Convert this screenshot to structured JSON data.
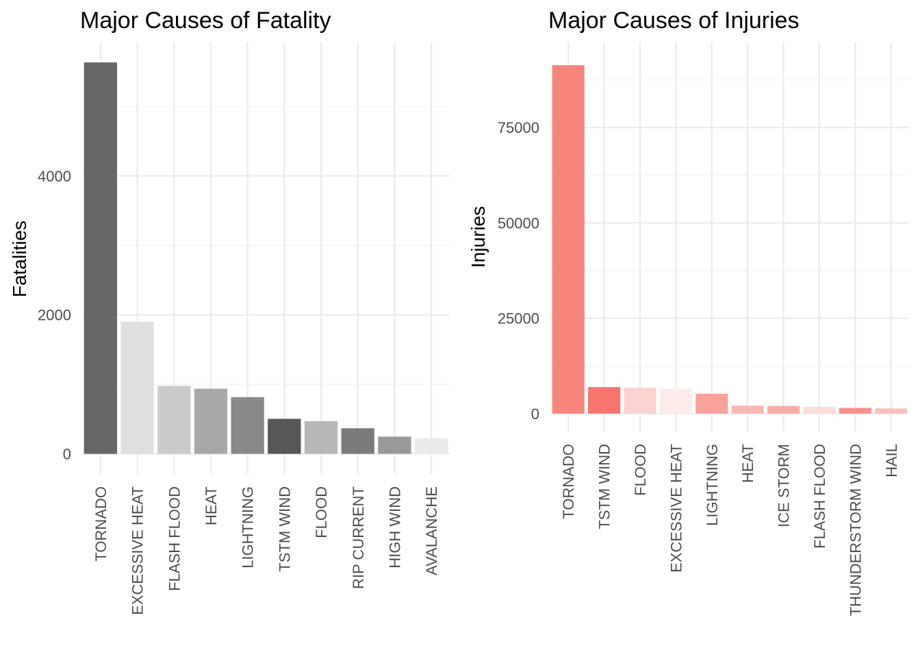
{
  "chart_data": [
    {
      "type": "bar",
      "title": "Major Causes of Fatality",
      "xlabel": "",
      "ylabel": "Fatalities",
      "categories": [
        "TORNADO",
        "EXCESSIVE HEAT",
        "FLASH FLOOD",
        "HEAT",
        "LIGHTNING",
        "TSTM WIND",
        "FLOOD",
        "RIP CURRENT",
        "HIGH WIND",
        "AVALANCHE"
      ],
      "values": [
        5633,
        1903,
        978,
        937,
        816,
        504,
        470,
        368,
        248,
        224
      ],
      "bar_colors": [
        "#676767",
        "#dedede",
        "#cbcbcb",
        "#a8a8a8",
        "#898989",
        "#585858",
        "#b8b8b8",
        "#7a7a7a",
        "#999999",
        "#eaeaea"
      ],
      "yticks": [
        0,
        2000,
        4000
      ],
      "ylim": [
        -290,
        5920
      ],
      "grid": true
    },
    {
      "type": "bar",
      "title": "Major Causes of Injuries",
      "xlabel": "",
      "ylabel": "Injuries",
      "categories": [
        "TORNADO",
        "TSTM WIND",
        "FLOOD",
        "EXCESSIVE HEAT",
        "LIGHTNING",
        "HEAT",
        "ICE STORM",
        "FLASH FLOOD",
        "THUNDERSTORM WIND",
        "HAIL"
      ],
      "values": [
        91346,
        6957,
        6789,
        6525,
        5230,
        2100,
        1975,
        1777,
        1488,
        1361
      ],
      "bar_colors": [
        "#f8857c",
        "#f7756d",
        "#fbd2cf",
        "#fdebea",
        "#f9a19a",
        "#fab8b3",
        "#f9aca6",
        "#fcdcd9",
        "#f89089",
        "#f9c0bc"
      ],
      "yticks": [
        0,
        25000,
        50000,
        75000
      ],
      "ylim": [
        -4700,
        97300
      ],
      "grid": true
    }
  ]
}
